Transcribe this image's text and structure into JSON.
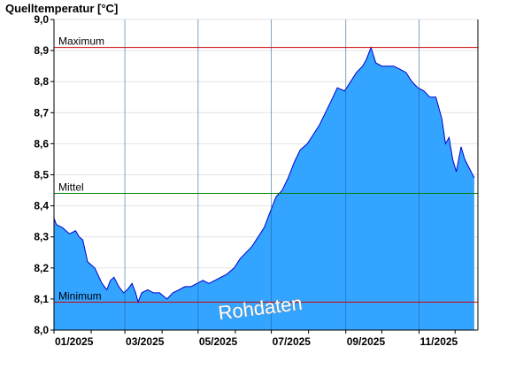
{
  "chart_data": {
    "type": "area",
    "title": "Quelltemperatur [°C]",
    "xlabel": "",
    "ylabel": "",
    "ylim": [
      8.0,
      9.0
    ],
    "y_ticks": [
      "8,0",
      "8,1",
      "8,2",
      "8,3",
      "8,4",
      "8,5",
      "8,6",
      "8,7",
      "8,8",
      "8,9",
      "9,0"
    ],
    "x_ticks": [
      "01/2025",
      "03/2025",
      "05/2025",
      "07/2025",
      "09/2025",
      "11/2025"
    ],
    "grid": true,
    "watermark": "Rohdaten",
    "colors": {
      "fill": "#33a4ff",
      "line": "#0000cc",
      "maximum": "#cc0000",
      "mittel": "#008000",
      "minimum": "#cc0000"
    },
    "reference_lines": [
      {
        "label": "Maximum",
        "value": 8.91
      },
      {
        "label": "Mittel",
        "value": 8.44
      },
      {
        "label": "Minimum",
        "value": 8.09
      }
    ],
    "series": [
      {
        "x": [
          "2025-01-01",
          "2025-01-03",
          "2025-01-08",
          "2025-01-14",
          "2025-01-19",
          "2025-01-22",
          "2025-01-25",
          "2025-01-29",
          "2025-02-04",
          "2025-02-10",
          "2025-02-14",
          "2025-02-17",
          "2025-02-20",
          "2025-02-24",
          "2025-02-28",
          "2025-03-03",
          "2025-03-07",
          "2025-03-10",
          "2025-03-12",
          "2025-03-15",
          "2025-03-20",
          "2025-03-25",
          "2025-03-30",
          "2025-04-05",
          "2025-04-10",
          "2025-04-15",
          "2025-04-20",
          "2025-04-25",
          "2025-04-30",
          "2025-05-05",
          "2025-05-10",
          "2025-05-15",
          "2025-05-20",
          "2025-05-25",
          "2025-05-31",
          "2025-06-05",
          "2025-06-10",
          "2025-06-15",
          "2025-06-20",
          "2025-06-25",
          "2025-06-30",
          "2025-07-05",
          "2025-07-10",
          "2025-07-15",
          "2025-07-20",
          "2025-07-25",
          "2025-07-31",
          "2025-08-05",
          "2025-08-10",
          "2025-08-15",
          "2025-08-20",
          "2025-08-25",
          "2025-08-31",
          "2025-09-05",
          "2025-09-10",
          "2025-09-15",
          "2025-09-18",
          "2025-09-22",
          "2025-09-26",
          "2025-10-01",
          "2025-10-06",
          "2025-10-11",
          "2025-10-16",
          "2025-10-21",
          "2025-10-26",
          "2025-10-31",
          "2025-11-05",
          "2025-11-10",
          "2025-11-15",
          "2025-11-20",
          "2025-11-23",
          "2025-11-26",
          "2025-11-29",
          "2025-12-02",
          "2025-12-06",
          "2025-12-09",
          "2025-12-13",
          "2025-12-17"
        ],
        "y": [
          8.36,
          8.34,
          8.33,
          8.31,
          8.32,
          8.3,
          8.29,
          8.22,
          8.2,
          8.15,
          8.13,
          8.16,
          8.17,
          8.14,
          8.12,
          8.13,
          8.15,
          8.12,
          8.09,
          8.12,
          8.13,
          8.12,
          8.12,
          8.1,
          8.12,
          8.13,
          8.14,
          8.14,
          8.15,
          8.16,
          8.15,
          8.16,
          8.17,
          8.18,
          8.2,
          8.23,
          8.25,
          8.27,
          8.3,
          8.33,
          8.38,
          8.43,
          8.45,
          8.49,
          8.54,
          8.58,
          8.6,
          8.63,
          8.66,
          8.7,
          8.74,
          8.78,
          8.77,
          8.8,
          8.83,
          8.85,
          8.87,
          8.91,
          8.86,
          8.85,
          8.85,
          8.85,
          8.84,
          8.83,
          8.8,
          8.78,
          8.77,
          8.75,
          8.75,
          8.68,
          8.6,
          8.62,
          8.55,
          8.51,
          8.59,
          8.55,
          8.52,
          8.49
        ]
      }
    ]
  }
}
